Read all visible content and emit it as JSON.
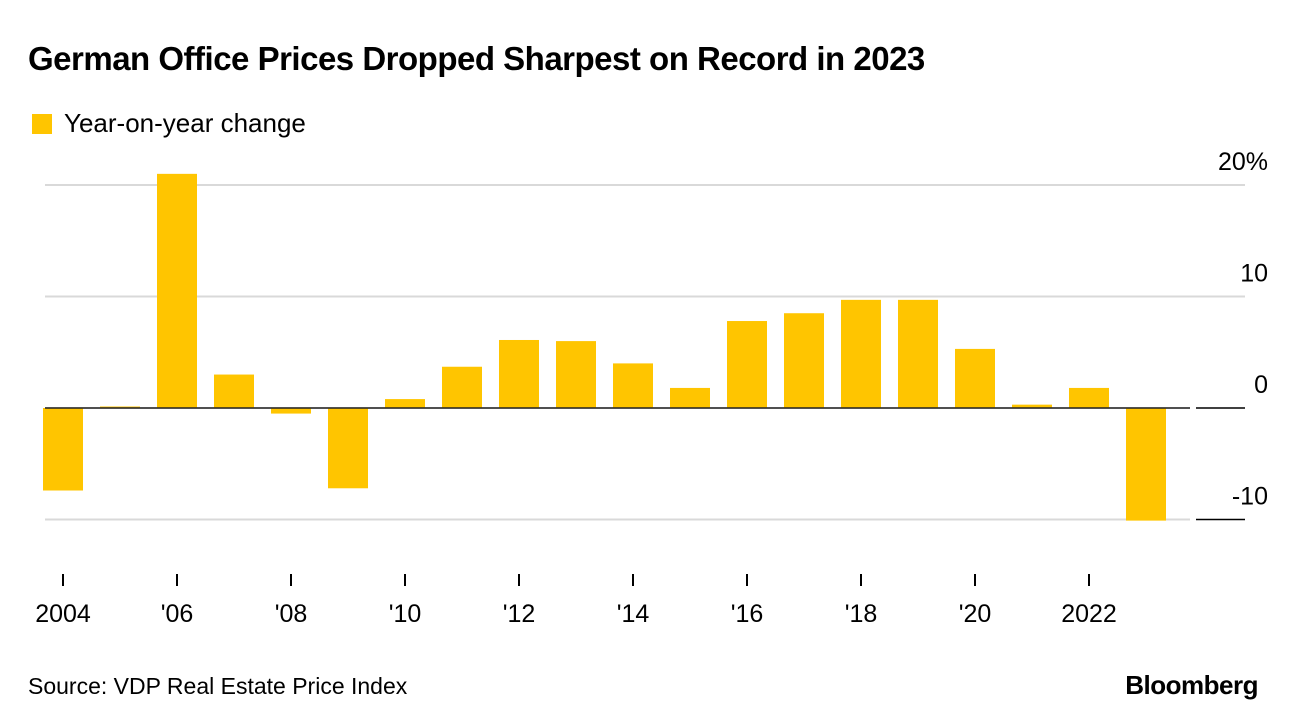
{
  "chart_data": {
    "type": "bar",
    "title": "German Office Prices Dropped Sharpest on Record in 2023",
    "legend": [
      {
        "label": "Year-on-year change",
        "color": "#FFC500"
      }
    ],
    "categories": [
      "2004",
      "2005",
      "2006",
      "2007",
      "2008",
      "2009",
      "2010",
      "2011",
      "2012",
      "2013",
      "2014",
      "2015",
      "2016",
      "2017",
      "2018",
      "2019",
      "2020",
      "2021",
      "2022",
      "2023"
    ],
    "values": [
      -7.4,
      0.1,
      21.0,
      3.0,
      -0.5,
      -7.2,
      0.8,
      3.7,
      6.1,
      6.0,
      4.0,
      1.8,
      7.8,
      8.5,
      9.7,
      9.7,
      5.3,
      0.3,
      1.8,
      -10.1
    ],
    "x_tick_labels": [
      {
        "category": "2004",
        "label": "2004"
      },
      {
        "category": "2006",
        "label": "'06"
      },
      {
        "category": "2008",
        "label": "'08"
      },
      {
        "category": "2010",
        "label": "'10"
      },
      {
        "category": "2012",
        "label": "'12"
      },
      {
        "category": "2014",
        "label": "'14"
      },
      {
        "category": "2016",
        "label": "'16"
      },
      {
        "category": "2018",
        "label": "'18"
      },
      {
        "category": "2020",
        "label": "'20"
      },
      {
        "category": "2022",
        "label": "2022"
      }
    ],
    "y_ticks": [
      {
        "value": 20,
        "label": "20%"
      },
      {
        "value": 10,
        "label": "10"
      },
      {
        "value": 0,
        "label": "0"
      },
      {
        "value": -10,
        "label": "-10"
      }
    ],
    "ylim": [
      -14,
      21
    ],
    "xlabel": "",
    "ylabel": "",
    "grid": true,
    "y_axis_position": "right",
    "legend_position": "top-left"
  },
  "source": "Source: VDP Real Estate Price Index",
  "brand": "Bloomberg"
}
